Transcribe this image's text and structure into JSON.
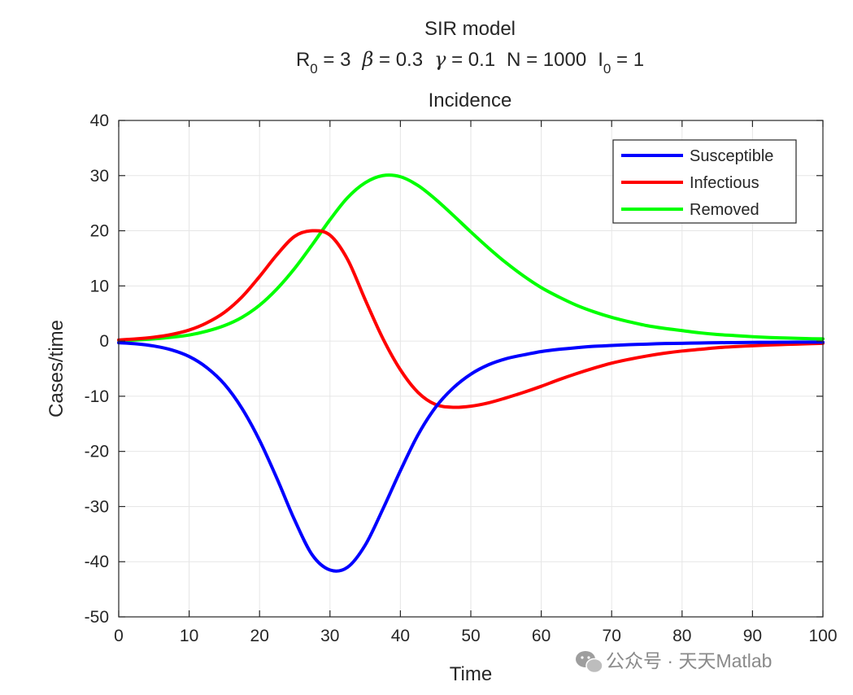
{
  "watermark": {
    "text": "公众号 · 天天Matlab",
    "icon": "wechat-icon"
  },
  "chart_data": {
    "type": "line",
    "title": "SIR model",
    "subtitle": {
      "r0_symbol": "R",
      "r0_sub": "0",
      "r0_value": " = 3",
      "beta_symbol": "β",
      "beta_value": " = 0.3",
      "gamma_symbol": "γ",
      "gamma_value": " = 0.1",
      "n_text": "N = 1000",
      "i0_symbol": "I",
      "i0_sub": "0",
      "i0_value": " = 1"
    },
    "panel_title": "Incidence",
    "xlabel": "Time",
    "ylabel": "Cases/time",
    "xlim": [
      0,
      100
    ],
    "ylim": [
      -50,
      40
    ],
    "xticks": [
      0,
      10,
      20,
      30,
      40,
      50,
      60,
      70,
      80,
      90,
      100
    ],
    "yticks": [
      -50,
      -40,
      -30,
      -20,
      -10,
      0,
      10,
      20,
      30,
      40
    ],
    "grid": true,
    "legend_position": "top-right",
    "x": [
      0,
      2.5,
      5,
      7.5,
      10,
      12.5,
      15,
      17.5,
      20,
      22.5,
      25,
      27.5,
      30,
      32.5,
      35,
      37.5,
      40,
      42.5,
      45,
      47.5,
      50,
      52.5,
      55,
      57.5,
      60,
      62.5,
      65,
      67.5,
      70,
      72.5,
      75,
      77.5,
      80,
      82.5,
      85,
      87.5,
      90,
      92.5,
      95,
      97.5,
      100
    ],
    "series": [
      {
        "name": "Susceptible",
        "color": "#0000ff",
        "values": [
          -0.3,
          -0.5,
          -0.9,
          -1.6,
          -2.8,
          -4.8,
          -7.8,
          -12.2,
          -18.0,
          -25.0,
          -32.5,
          -38.8,
          -41.5,
          -41.0,
          -37.0,
          -30.5,
          -23.5,
          -17.0,
          -12.0,
          -8.5,
          -6.0,
          -4.3,
          -3.2,
          -2.5,
          -1.9,
          -1.5,
          -1.2,
          -0.95,
          -0.8,
          -0.65,
          -0.55,
          -0.45,
          -0.4,
          -0.35,
          -0.3,
          -0.27,
          -0.24,
          -0.22,
          -0.2,
          -0.18,
          -0.2
        ]
      },
      {
        "name": "Infectious",
        "color": "#ff0000",
        "values": [
          0.2,
          0.4,
          0.7,
          1.2,
          2.0,
          3.3,
          5.2,
          8.0,
          11.7,
          15.7,
          19.0,
          20.0,
          19.2,
          14.8,
          7.5,
          0.5,
          -5.2,
          -9.3,
          -11.5,
          -12.0,
          -11.8,
          -11.2,
          -10.3,
          -9.3,
          -8.2,
          -7.0,
          -5.9,
          -4.9,
          -4.0,
          -3.3,
          -2.7,
          -2.2,
          -1.8,
          -1.5,
          -1.2,
          -1.0,
          -0.85,
          -0.7,
          -0.6,
          -0.5,
          -0.4
        ]
      },
      {
        "name": "Removed",
        "color": "#00ff00",
        "values": [
          0.1,
          0.2,
          0.4,
          0.7,
          1.1,
          1.8,
          2.8,
          4.3,
          6.5,
          9.5,
          13.2,
          17.5,
          22.0,
          26.0,
          28.7,
          30.0,
          29.8,
          28.2,
          25.7,
          22.8,
          19.8,
          16.9,
          14.2,
          11.8,
          9.7,
          8.0,
          6.5,
          5.3,
          4.3,
          3.5,
          2.8,
          2.3,
          1.9,
          1.5,
          1.2,
          1.0,
          0.8,
          0.65,
          0.55,
          0.45,
          0.4
        ]
      }
    ]
  }
}
